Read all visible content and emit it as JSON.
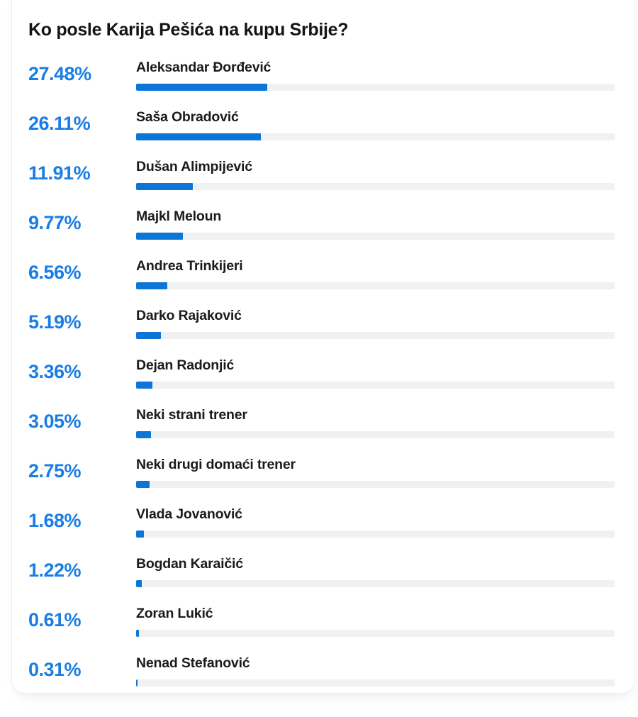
{
  "colors": {
    "bar_fill": "#0c75d8",
    "bar_track": "#f0f1f2",
    "percent_text": "#1a7de4",
    "title_text": "#121418",
    "label_text": "#1b1b1f"
  },
  "chart_data": {
    "type": "bar",
    "orientation": "horizontal",
    "title": "Ko posle Karija Pešića na kupu Srbije?",
    "categories": [
      "Aleksandar Đorđević",
      "Saša Obradović",
      "Dušan Alimpijević",
      "Majkl Meloun",
      "Andrea Trinkijeri",
      "Darko Rajaković",
      "Dejan Radonjić",
      "Neki strani trener",
      "Neki drugi domaći trener",
      "Vlada Jovanović",
      "Bogdan Karaičić",
      "Zoran Lukić",
      "Nenad Stefanović"
    ],
    "values": [
      27.48,
      26.11,
      11.91,
      9.77,
      6.56,
      5.19,
      3.36,
      3.05,
      2.75,
      1.68,
      1.22,
      0.61,
      0.31
    ],
    "value_labels": [
      "27.48%",
      "26.11%",
      "11.91%",
      "9.77%",
      "6.56%",
      "5.19%",
      "3.36%",
      "3.05%",
      "2.75%",
      "1.68%",
      "1.22%",
      "0.61%",
      "0.31%"
    ],
    "xlabel": "",
    "ylabel": "",
    "xlim": [
      0,
      100
    ],
    "grid": false,
    "legend": false,
    "value_format": "percent"
  }
}
